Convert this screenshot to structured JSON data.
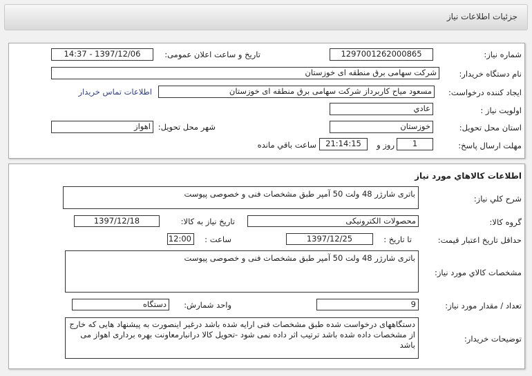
{
  "header": {
    "title": "جزئیات اطلاعات نیاز"
  },
  "need": {
    "number_label": "شماره نیاز:",
    "number": "1297001262000865",
    "announce_label": "تاریخ و ساعت اعلان عمومی:",
    "announce": "1397/12/06 - 14:37",
    "buyer_label": "نام دستگاه خریدار:",
    "buyer": "شرکت سهامی برق منطقه ای خوزستان",
    "creator_label": "ایجاد کننده درخواست:",
    "creator": "مسعود میاح کاربرداز شرکت سهامی برق منطقه ای خوزستان",
    "contact_link": "اطلاعات تماس خریدار",
    "priority_label": "اولویت نیاز :",
    "priority": "عادي",
    "province_label": "استان محل تحویل:",
    "province": "خوزستان",
    "city_label": "شهر محل تحویل:",
    "city": "اهواز",
    "deadline_label": "مهلت ارسال پاسخ:",
    "days": "1",
    "days_suffix": "روز و",
    "time_left": "21:14:15",
    "time_suffix": "ساعت باقي مانده"
  },
  "goods": {
    "title": "اطلاعات كالاهاي مورد نياز",
    "desc_label": "شرح كلي نياز:",
    "desc": "باتری شارژر 48 ولت 50 آمپر طبق مشخصات فنی و خصوصی پیوست",
    "group_label": "گروه كالا:",
    "group": "محصولات الکترونیکی",
    "need_date_label": "تاریخ نیاز به کالا:",
    "need_date": "1397/12/18",
    "validity_label": "حداقل تاریخ اعتبار قیمت:",
    "to_date_label": "تا تاریخ :",
    "to_date": "1397/12/25",
    "hour_label": "ساعت :",
    "hour": "12:00",
    "spec_label": "مشخصات كالاي مورد نياز:",
    "spec": "باتری شارژر 48 ولت 50 آمپر طبق مشخصات فنی و خصوصی پیوست",
    "qty_label": "تعداد / مقدار مورد نیاز:",
    "qty": "9",
    "unit_label": "واحد شمارش:",
    "unit": "دستگاه",
    "notes_label": "توضیحات خریدار:",
    "notes": "دستگاههای درخواست شده طبق مشخصات فنی ارایه شده باشد درغیر اینصورت به پیشنهاد هایی که خارج از مشخصات داده شده باشد ترتیب اثر داده نمی شود -تحویل کالا درانبارمعاونت بهره برداری اهواز می باشد"
  }
}
